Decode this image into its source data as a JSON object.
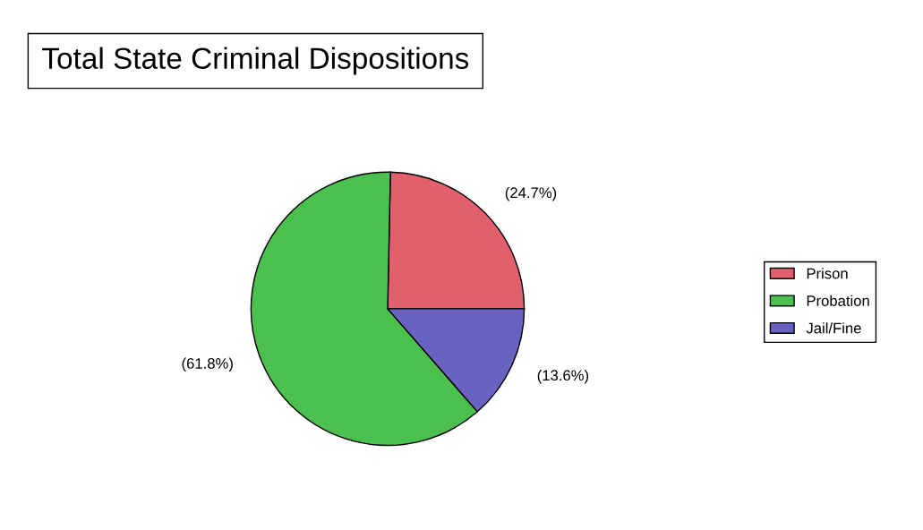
{
  "chart_data": {
    "type": "pie",
    "title": "Total State Criminal Dispositions",
    "categories": [
      "Prison",
      "Probation",
      "Jail/Fine"
    ],
    "values": [
      24.7,
      61.8,
      13.6
    ],
    "colors": [
      "#e2606e",
      "#4cc04e",
      "#6a62c0"
    ],
    "value_labels": [
      "(24.7%)",
      "(61.8%)",
      "(13.6%)"
    ],
    "legend": "right"
  }
}
